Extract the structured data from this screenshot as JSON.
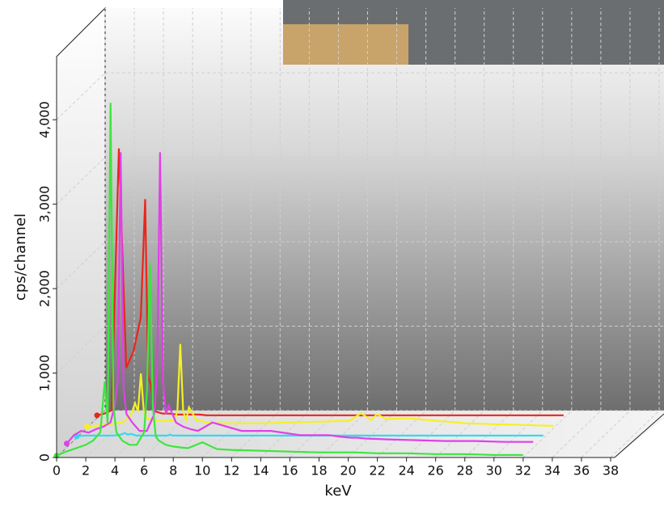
{
  "chart_data": {
    "type": "line",
    "x_label": "keV",
    "y_label": "cps/channel",
    "x": [
      0,
      0.5,
      1,
      1.5,
      2,
      2.5,
      3,
      3.3,
      3.5,
      3.7,
      3.9,
      4.1,
      4.5,
      5,
      5.5,
      6,
      6.2,
      6.4,
      6.6,
      6.8,
      7,
      7.5,
      8,
      8.5,
      9,
      10,
      11,
      12,
      14,
      16,
      18,
      18.8,
      19.5,
      19.9,
      20.5,
      22,
      24,
      26,
      28,
      30,
      32
    ],
    "series": [
      {
        "color": "#3de63d",
        "values": [
          20,
          60,
          90,
          120,
          150,
          200,
          300,
          900,
          400,
          4200,
          600,
          300,
          200,
          150,
          150,
          300,
          800,
          2300,
          600,
          250,
          200,
          150,
          130,
          120,
          110,
          180,
          100,
          90,
          80,
          70,
          60,
          60,
          60,
          60,
          60,
          50,
          50,
          40,
          40,
          30,
          30
        ]
      },
      {
        "color": "#e040e8",
        "values": [
          50,
          150,
          200,
          180,
          220,
          250,
          300,
          500,
          800,
          3500,
          700,
          400,
          300,
          200,
          200,
          400,
          900,
          3500,
          800,
          400,
          500,
          300,
          250,
          220,
          200,
          300,
          250,
          200,
          200,
          150,
          150,
          130,
          120,
          120,
          110,
          100,
          90,
          80,
          80,
          70,
          70
        ]
      },
      {
        "color": "#37d8f0",
        "values": [
          20,
          30,
          30,
          30,
          30,
          30,
          40,
          60,
          40,
          50,
          40,
          30,
          30,
          30,
          30,
          30,
          30,
          40,
          30,
          30,
          30,
          30,
          30,
          30,
          30,
          30,
          30,
          30,
          30,
          30,
          30,
          30,
          30,
          30,
          30,
          30,
          30,
          30,
          30,
          30,
          30
        ]
      },
      {
        "color": "#f5f026",
        "values": [
          20,
          30,
          40,
          50,
          60,
          80,
          150,
          300,
          200,
          650,
          200,
          120,
          100,
          90,
          90,
          100,
          200,
          1000,
          200,
          100,
          250,
          100,
          80,
          60,
          60,
          60,
          60,
          60,
          70,
          80,
          90,
          180,
          100,
          170,
          110,
          120,
          90,
          60,
          50,
          40,
          30
        ]
      },
      {
        "color": "#e8261c",
        "values": [
          40,
          60,
          100,
          3200,
          600,
          800,
          1200,
          2600,
          500,
          400,
          100,
          80,
          60,
          60,
          50,
          50,
          50,
          50,
          50,
          50,
          50,
          40,
          40,
          40,
          40,
          40,
          40,
          40,
          40,
          40,
          40,
          40,
          40,
          40,
          40,
          40,
          40,
          40,
          40,
          40,
          40
        ]
      }
    ],
    "xlim": [
      0,
      38
    ],
    "xticks": [
      0,
      2,
      4,
      6,
      8,
      10,
      12,
      14,
      16,
      18,
      20,
      22,
      24,
      26,
      28,
      30,
      32,
      34,
      36,
      38
    ],
    "ylim": [
      0,
      4700
    ],
    "yticks": [
      0,
      {
        "value": 1000,
        "label": "1,000"
      },
      {
        "value": 2000,
        "label": "2,000"
      },
      {
        "value": 3000,
        "label": "3,000"
      },
      {
        "value": 4000,
        "label": "4,000"
      }
    ],
    "grid": true
  }
}
